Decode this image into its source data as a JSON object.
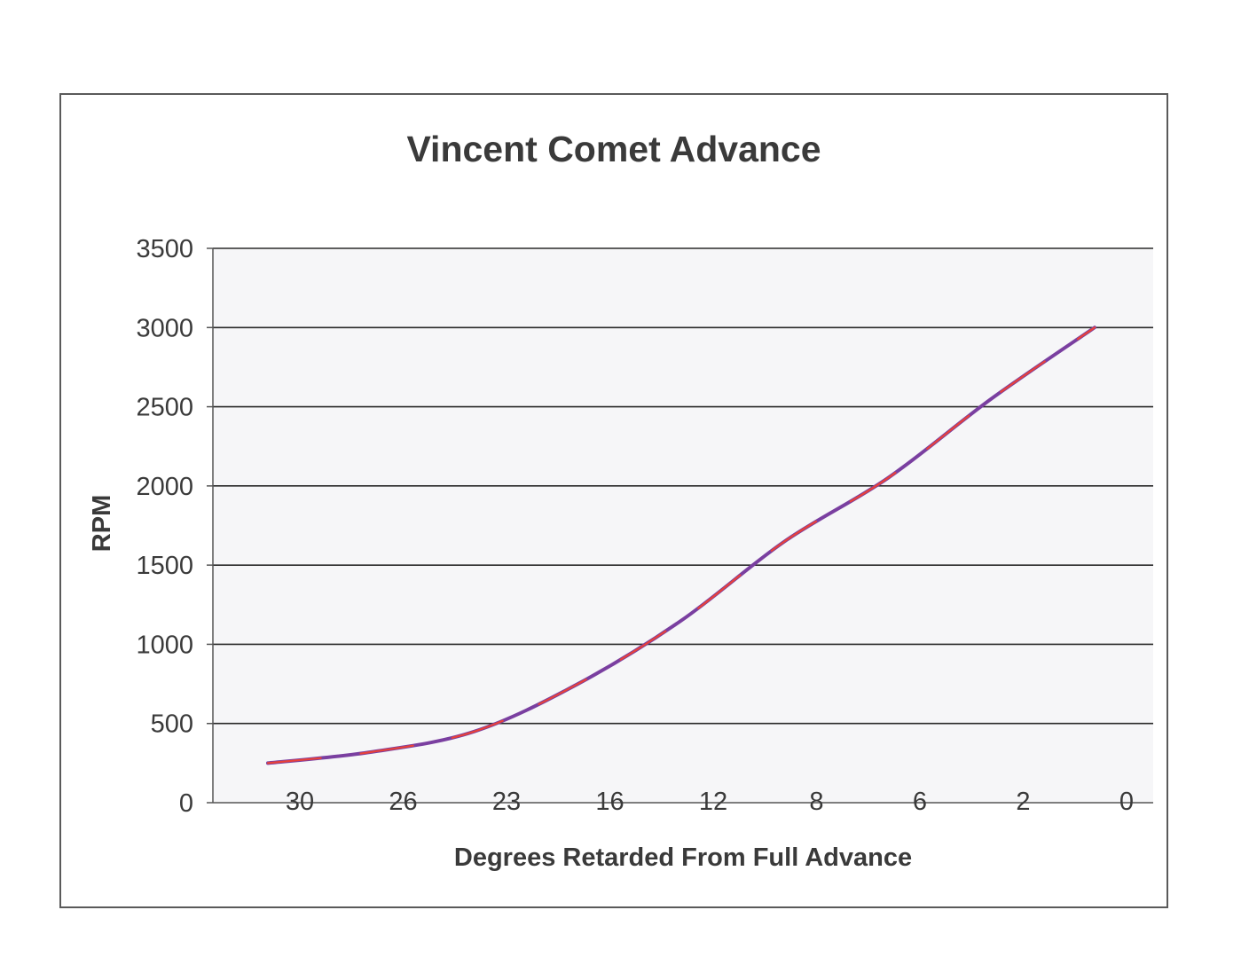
{
  "chart_data": {
    "type": "line",
    "title": "Vincent Comet Advance",
    "xlabel": "Degrees Retarded From Full Advance",
    "ylabel": "RPM",
    "categories": [
      "30",
      "26",
      "23",
      "16",
      "12",
      "8",
      "6",
      "2",
      "0"
    ],
    "series": [
      {
        "values": [
          250,
          320,
          450,
          750,
          1150,
          1650,
          2050,
          2550,
          3000
        ]
      }
    ],
    "ylim": [
      0,
      3500
    ],
    "yticks": [
      "0",
      "500",
      "1000",
      "1500",
      "2000",
      "2500",
      "3000",
      "3500"
    ],
    "grid": true,
    "legend": "none",
    "colors": {
      "line": "#7a3fa0",
      "line_highlight": "#e8413a",
      "gridline": "#2a2a2a",
      "plot_background": "#f6f6f8"
    }
  }
}
